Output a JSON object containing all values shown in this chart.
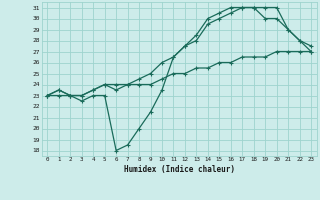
{
  "xlabel": "Humidex (Indice chaleur)",
  "bg_color": "#cdecea",
  "grid_color": "#9ed4ce",
  "line_color": "#1a6b5a",
  "xlim": [
    -0.5,
    23.5
  ],
  "ylim": [
    17.5,
    31.5
  ],
  "xticks": [
    0,
    1,
    2,
    3,
    4,
    5,
    6,
    7,
    8,
    9,
    10,
    11,
    12,
    13,
    14,
    15,
    16,
    17,
    18,
    19,
    20,
    21,
    22,
    23
  ],
  "yticks": [
    18,
    19,
    20,
    21,
    22,
    23,
    24,
    25,
    26,
    27,
    28,
    29,
    30,
    31
  ],
  "series1_x": [
    0,
    1,
    2,
    3,
    4,
    5,
    6,
    7,
    8,
    9,
    10,
    11,
    12,
    13,
    14,
    15,
    16,
    17,
    18,
    19,
    20,
    21,
    22,
    23
  ],
  "series1_y": [
    23,
    23.5,
    23,
    22.5,
    23,
    23,
    18,
    18.5,
    20,
    21.5,
    23.5,
    26.5,
    27.5,
    28,
    29.5,
    30,
    30.5,
    31,
    31,
    31,
    31,
    29,
    28,
    27.5
  ],
  "series2_x": [
    0,
    1,
    2,
    3,
    4,
    5,
    6,
    7,
    8,
    9,
    10,
    11,
    12,
    13,
    14,
    15,
    16,
    17,
    18,
    19,
    20,
    21,
    22,
    23
  ],
  "series2_y": [
    23,
    23.5,
    23,
    23,
    23.5,
    24,
    23.5,
    24,
    24.5,
    25,
    26,
    26.5,
    27.5,
    28.5,
    30,
    30.5,
    31,
    31,
    31,
    30,
    30,
    29,
    28,
    27
  ],
  "series3_x": [
    0,
    1,
    2,
    3,
    4,
    5,
    6,
    7,
    8,
    9,
    10,
    11,
    12,
    13,
    14,
    15,
    16,
    17,
    18,
    19,
    20,
    21,
    22,
    23
  ],
  "series3_y": [
    23,
    23,
    23,
    23,
    23.5,
    24,
    24,
    24,
    24,
    24,
    24.5,
    25,
    25,
    25.5,
    25.5,
    26,
    26,
    26.5,
    26.5,
    26.5,
    27,
    27,
    27,
    27
  ]
}
